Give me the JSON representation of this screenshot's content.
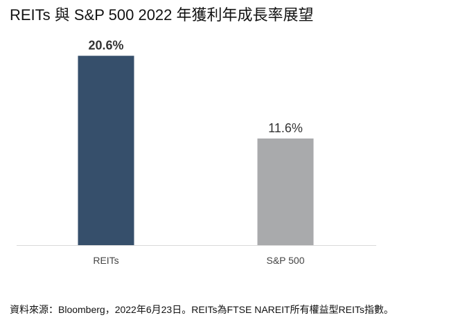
{
  "title": "REITs 與 S&P 500 2022 年獲利年成長率展望",
  "source_note": "資料來源：Bloomberg，2022年6月23日。REITs為FTSE NAREIT所有權益型REITs指數。",
  "chart_data": {
    "type": "bar",
    "categories": [
      "REITs",
      "S&P 500"
    ],
    "values": [
      20.6,
      11.6
    ],
    "data_labels": [
      "20.6%",
      "11.6%"
    ],
    "bar_colors": [
      "#364f6b",
      "#a9aaac"
    ],
    "label_bold": [
      true,
      false
    ],
    "ylim": [
      0,
      22.6
    ],
    "grid": false,
    "xlabel": "",
    "ylabel": ""
  }
}
